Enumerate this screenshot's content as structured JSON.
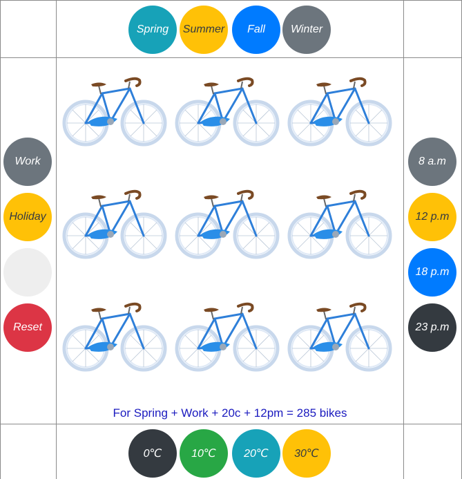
{
  "seasons": [
    {
      "label": "Spring",
      "color": "#17a2b8",
      "text": "#ffffff"
    },
    {
      "label": "Summer",
      "color": "#ffc107",
      "text": "#343a40"
    },
    {
      "label": "Fall",
      "color": "#007bff",
      "text": "#ffffff"
    },
    {
      "label": "Winter",
      "color": "#6c757d",
      "text": "#ffffff"
    }
  ],
  "day_types": [
    {
      "label": "Work",
      "color": "#6c757d",
      "text": "#ffffff"
    },
    {
      "label": "Holiday",
      "color": "#ffc107",
      "text": "#343a40"
    },
    {
      "label": "",
      "color": "#eeeeee",
      "text": "#343a40"
    },
    {
      "label": "Reset",
      "color": "#dc3545",
      "text": "#ffffff"
    }
  ],
  "times": [
    {
      "label": "8 a.m",
      "color": "#6c757d",
      "text": "#ffffff"
    },
    {
      "label": "12 p.m",
      "color": "#ffc107",
      "text": "#343a40"
    },
    {
      "label": "18 p.m",
      "color": "#007bff",
      "text": "#ffffff"
    },
    {
      "label": "23 p.m",
      "color": "#343a40",
      "text": "#ffffff"
    }
  ],
  "temperatures": [
    {
      "label": "0℃",
      "color": "#343a40",
      "text": "#ffffff"
    },
    {
      "label": "10℃",
      "color": "#28a745",
      "text": "#ffffff"
    },
    {
      "label": "20℃",
      "color": "#17a2b8",
      "text": "#ffffff"
    },
    {
      "label": "30℃",
      "color": "#ffc107",
      "text": "#343a40"
    }
  ],
  "bike_icon": "bicycle-icon",
  "bike_count_shown": 9,
  "summary_text": "For Spring + Work + 20c + 12pm = 285 bikes"
}
